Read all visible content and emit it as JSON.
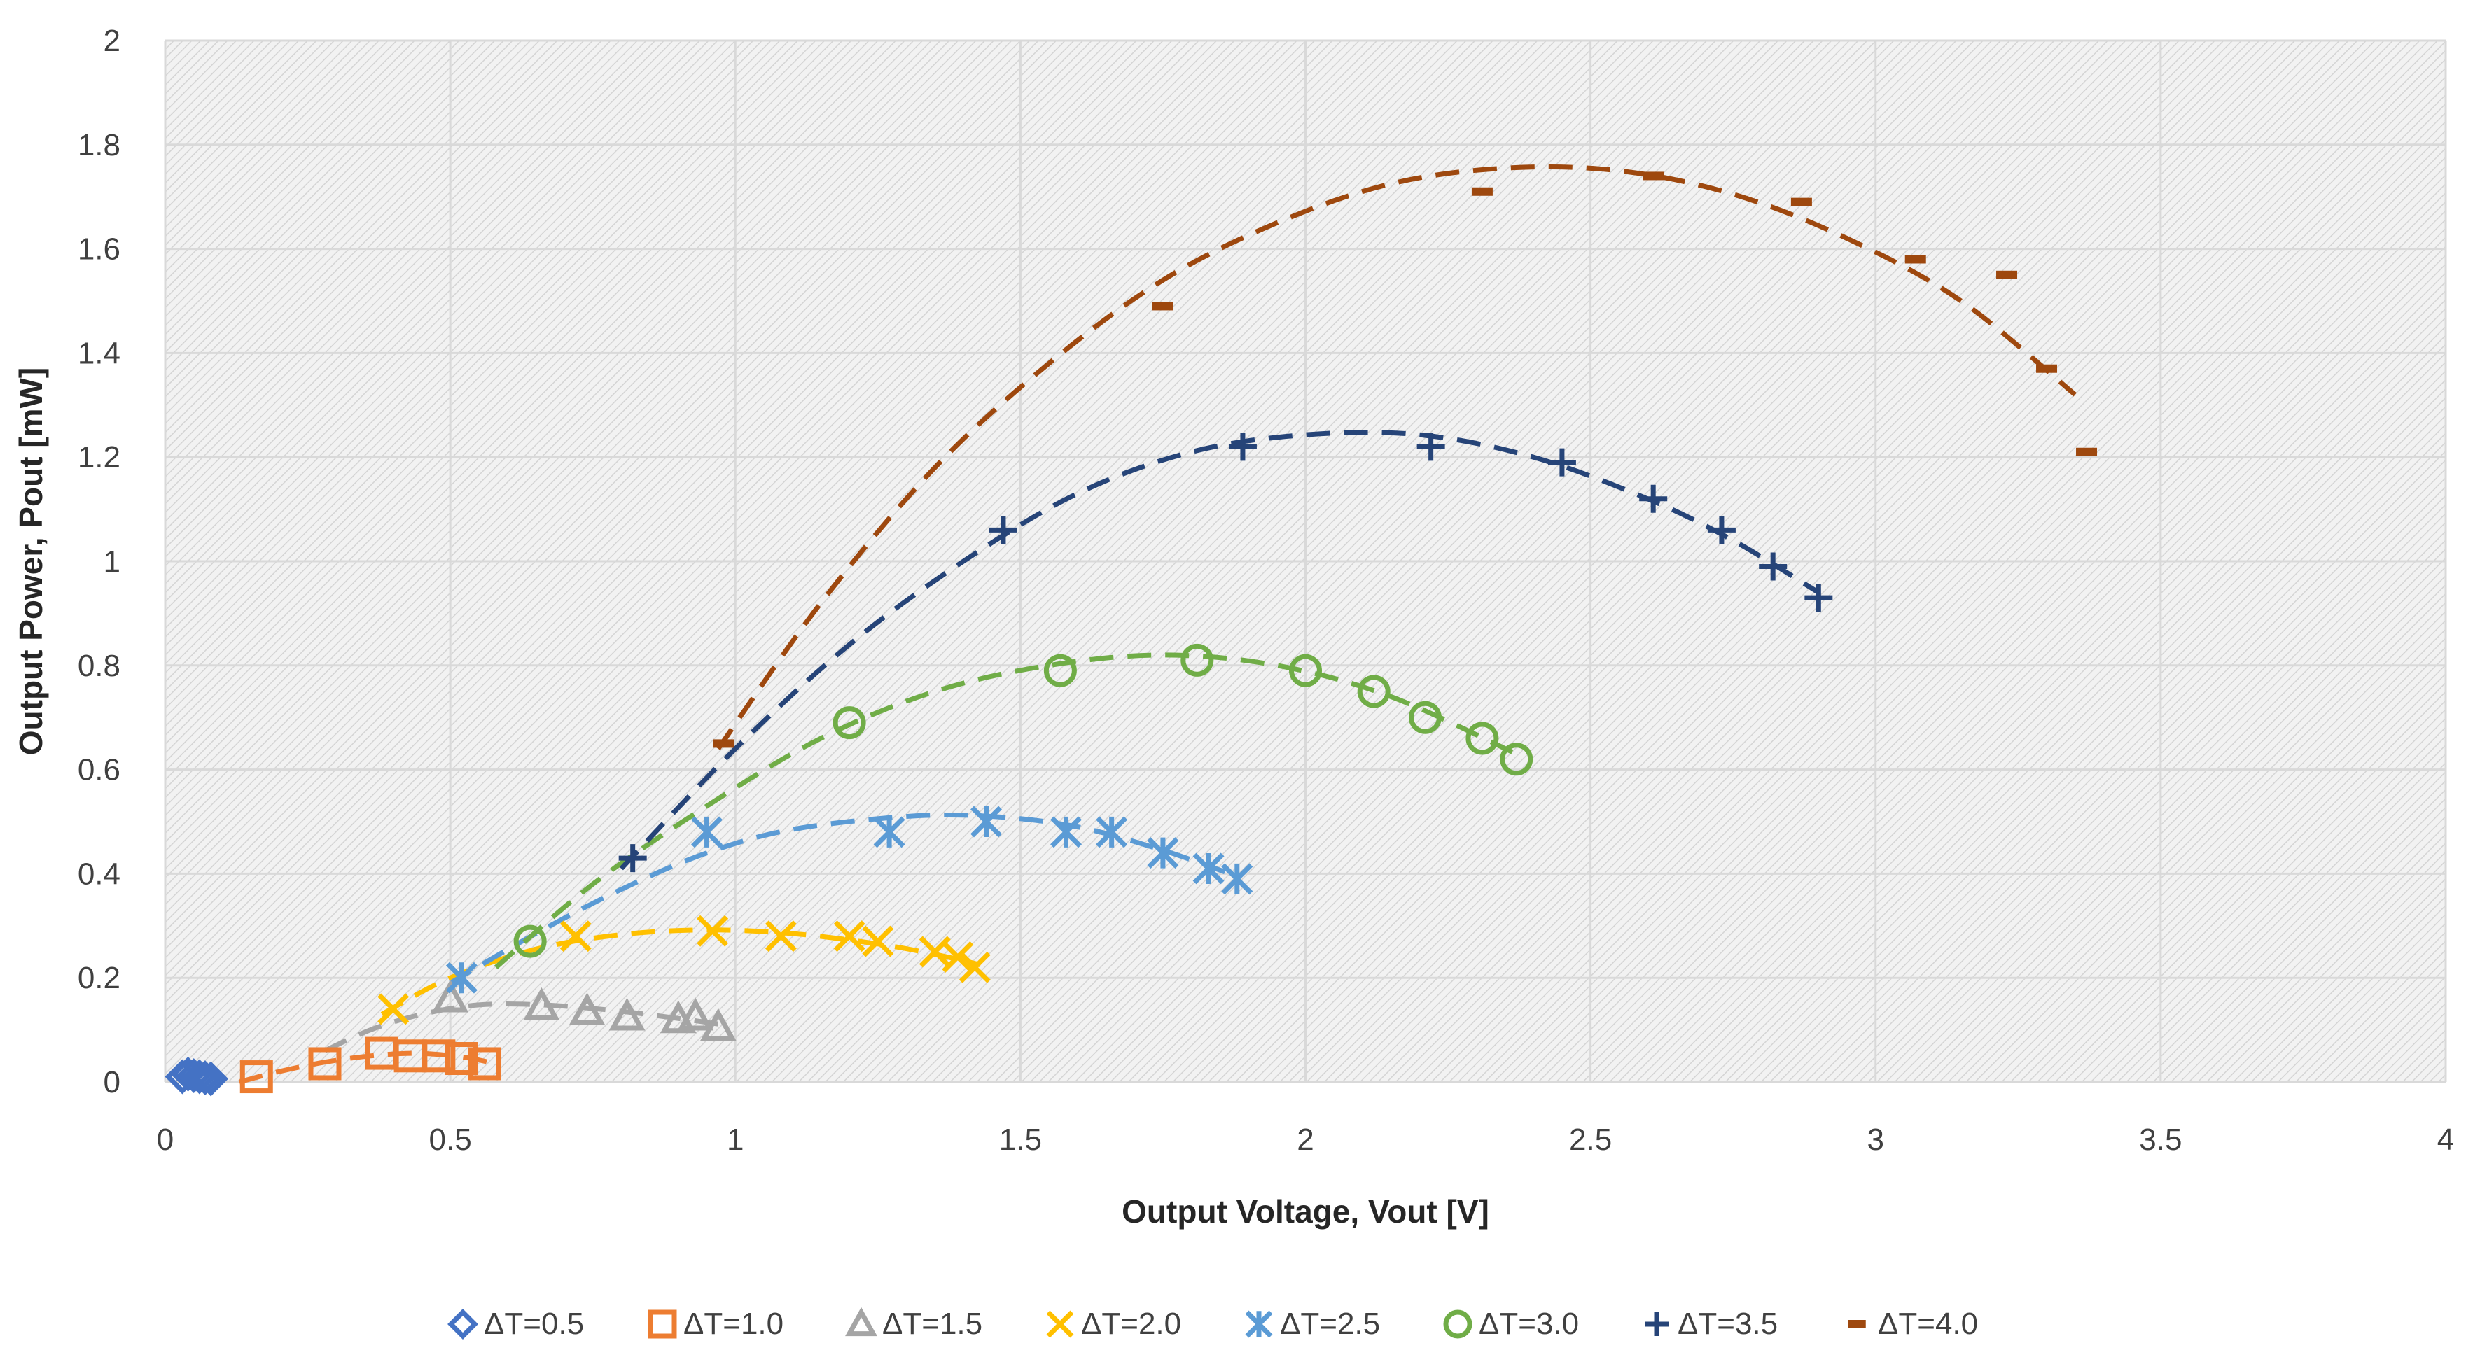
{
  "chart_data": {
    "type": "scatter",
    "title": "",
    "xlabel": "Output Voltage, Vout [V]",
    "ylabel": "Output Power, Pout [mW]",
    "xlim": [
      0,
      4
    ],
    "ylim": [
      0,
      2
    ],
    "xticks": [
      0,
      0.5,
      1,
      1.5,
      2,
      2.5,
      3,
      3.5,
      4
    ],
    "yticks": [
      0,
      0.2,
      0.4,
      0.6,
      0.8,
      1,
      1.2,
      1.4,
      1.6,
      1.8,
      2
    ],
    "xtick_labels": [
      "0",
      "0.5",
      "1",
      "1.5",
      "2",
      "2.5",
      "3",
      "3.5",
      "4"
    ],
    "ytick_labels": [
      "0",
      "0.2",
      "0.4",
      "0.6",
      "0.8",
      "1",
      "1.2",
      "1.4",
      "1.6",
      "1.8",
      "2"
    ],
    "grid": true,
    "legend_position": "bottom",
    "trendline": "dashed polynomial fit per series",
    "series": [
      {
        "name": "ΔT=0.5",
        "color": "#4472C4",
        "marker": "diamond",
        "x": [
          0.03,
          0.04,
          0.05,
          0.06,
          0.07,
          0.08
        ],
        "y": [
          0.01,
          0.015,
          0.012,
          0.01,
          0.008,
          0.006
        ],
        "trend": [
          [
            0.02,
            0.006
          ],
          [
            0.05,
            0.013
          ],
          [
            0.09,
            0.008
          ]
        ]
      },
      {
        "name": "ΔT=1.0",
        "color": "#ED7D31",
        "marker": "square",
        "x": [
          0.16,
          0.28,
          0.38,
          0.43,
          0.48,
          0.52,
          0.56
        ],
        "y": [
          0.01,
          0.035,
          0.055,
          0.05,
          0.05,
          0.045,
          0.035
        ],
        "trend": [
          [
            0.13,
            0.0
          ],
          [
            0.2,
            0.02
          ],
          [
            0.28,
            0.038
          ],
          [
            0.36,
            0.05
          ],
          [
            0.44,
            0.055
          ],
          [
            0.52,
            0.048
          ],
          [
            0.58,
            0.035
          ]
        ]
      },
      {
        "name": "ΔT=1.5",
        "color": "#A5A5A5",
        "marker": "triangle",
        "x": [
          0.5,
          0.66,
          0.74,
          0.81,
          0.9,
          0.93,
          0.97
        ],
        "y": [
          0.16,
          0.145,
          0.135,
          0.125,
          0.12,
          0.125,
          0.105
        ],
        "trend": [
          [
            0.28,
            0.06
          ],
          [
            0.36,
            0.1
          ],
          [
            0.45,
            0.13
          ],
          [
            0.55,
            0.148
          ],
          [
            0.66,
            0.148
          ],
          [
            0.78,
            0.138
          ],
          [
            0.9,
            0.122
          ],
          [
            0.99,
            0.108
          ]
        ]
      },
      {
        "name": "ΔT=2.0",
        "color": "#FFC000",
        "marker": "x",
        "x": [
          0.4,
          0.72,
          0.96,
          1.08,
          1.2,
          1.25,
          1.35,
          1.39,
          1.42
        ],
        "y": [
          0.14,
          0.28,
          0.29,
          0.28,
          0.28,
          0.27,
          0.25,
          0.24,
          0.22
        ],
        "trend": [
          [
            0.38,
            0.13
          ],
          [
            0.5,
            0.2
          ],
          [
            0.65,
            0.255
          ],
          [
            0.8,
            0.283
          ],
          [
            0.95,
            0.292
          ],
          [
            1.1,
            0.285
          ],
          [
            1.25,
            0.265
          ],
          [
            1.35,
            0.245
          ],
          [
            1.43,
            0.225
          ]
        ]
      },
      {
        "name": "ΔT=2.5",
        "color": "#5B9BD5",
        "marker": "star",
        "x": [
          0.52,
          0.95,
          1.27,
          1.44,
          1.58,
          1.66,
          1.75,
          1.83,
          1.88
        ],
        "y": [
          0.2,
          0.48,
          0.48,
          0.5,
          0.48,
          0.48,
          0.44,
          0.41,
          0.39
        ],
        "trend": [
          [
            0.5,
            0.19
          ],
          [
            0.65,
            0.285
          ],
          [
            0.8,
            0.37
          ],
          [
            0.95,
            0.44
          ],
          [
            1.1,
            0.485
          ],
          [
            1.3,
            0.51
          ],
          [
            1.45,
            0.51
          ],
          [
            1.6,
            0.49
          ],
          [
            1.75,
            0.445
          ],
          [
            1.88,
            0.395
          ]
        ]
      },
      {
        "name": "ΔT=3.0",
        "color": "#70AD47",
        "marker": "circle",
        "x": [
          0.64,
          1.2,
          1.57,
          1.81,
          2.0,
          2.12,
          2.21,
          2.31,
          2.37
        ],
        "y": [
          0.27,
          0.69,
          0.79,
          0.81,
          0.79,
          0.75,
          0.7,
          0.66,
          0.62
        ],
        "trend": [
          [
            0.58,
            0.22
          ],
          [
            0.75,
            0.38
          ],
          [
            0.95,
            0.53
          ],
          [
            1.15,
            0.66
          ],
          [
            1.35,
            0.75
          ],
          [
            1.55,
            0.8
          ],
          [
            1.75,
            0.82
          ],
          [
            1.95,
            0.8
          ],
          [
            2.15,
            0.74
          ],
          [
            2.37,
            0.63
          ]
        ]
      },
      {
        "name": "ΔT=3.5",
        "color": "#264478",
        "marker": "plus",
        "x": [
          0.82,
          1.47,
          1.89,
          2.22,
          2.45,
          2.61,
          2.73,
          2.82,
          2.9
        ],
        "y": [
          0.43,
          1.06,
          1.22,
          1.22,
          1.19,
          1.12,
          1.06,
          0.99,
          0.93
        ],
        "trend": [
          [
            0.8,
            0.41
          ],
          [
            1.0,
            0.64
          ],
          [
            1.2,
            0.84
          ],
          [
            1.4,
            1.0
          ],
          [
            1.6,
            1.13
          ],
          [
            1.8,
            1.21
          ],
          [
            2.0,
            1.243
          ],
          [
            2.2,
            1.243
          ],
          [
            2.4,
            1.2
          ],
          [
            2.6,
            1.12
          ],
          [
            2.75,
            1.04
          ],
          [
            2.9,
            0.94
          ]
        ]
      },
      {
        "name": "ΔT=4.0",
        "color": "#9E480E",
        "marker": "dash",
        "x": [
          0.98,
          1.75,
          2.31,
          2.61,
          2.87,
          3.07,
          3.23,
          3.3,
          3.37
        ],
        "y": [
          0.65,
          1.49,
          1.71,
          1.74,
          1.69,
          1.58,
          1.55,
          1.37,
          1.21
        ],
        "trend": [
          [
            0.97,
            0.64
          ],
          [
            1.15,
            0.92
          ],
          [
            1.35,
            1.18
          ],
          [
            1.55,
            1.38
          ],
          [
            1.75,
            1.54
          ],
          [
            1.95,
            1.65
          ],
          [
            2.15,
            1.725
          ],
          [
            2.35,
            1.755
          ],
          [
            2.55,
            1.75
          ],
          [
            2.75,
            1.705
          ],
          [
            2.95,
            1.62
          ],
          [
            3.15,
            1.5
          ],
          [
            3.35,
            1.32
          ]
        ]
      }
    ]
  }
}
